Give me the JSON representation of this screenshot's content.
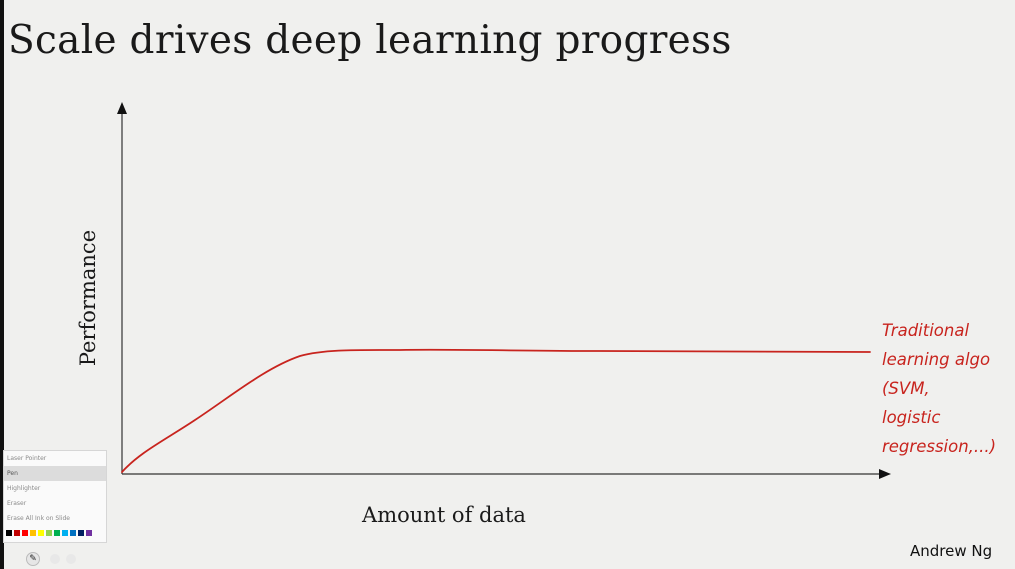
{
  "slide": {
    "title": "Scale drives deep learning progress",
    "y_axis_label": "Performance",
    "x_axis_label": "Amount of data",
    "credit": "Andrew Ng",
    "annotation_lines": [
      "Traditional",
      "learning algo",
      "(SVM,",
      "logistic",
      "regression,...)"
    ],
    "ink_color": "#c8241e"
  },
  "pen_menu": {
    "items": [
      {
        "label": "Laser Pointer",
        "selected": false
      },
      {
        "label": "Pen",
        "selected": true
      },
      {
        "label": "Highlighter",
        "selected": false
      },
      {
        "label": "Eraser",
        "selected": false
      },
      {
        "label": "Erase All Ink on Slide",
        "selected": false
      }
    ],
    "colors": [
      "#000000",
      "#c00000",
      "#ff0000",
      "#ffc000",
      "#ffff00",
      "#92d050",
      "#00b050",
      "#00b0f0",
      "#0070c0",
      "#002060",
      "#7030a0"
    ],
    "pen_icon": "pen-icon"
  }
}
